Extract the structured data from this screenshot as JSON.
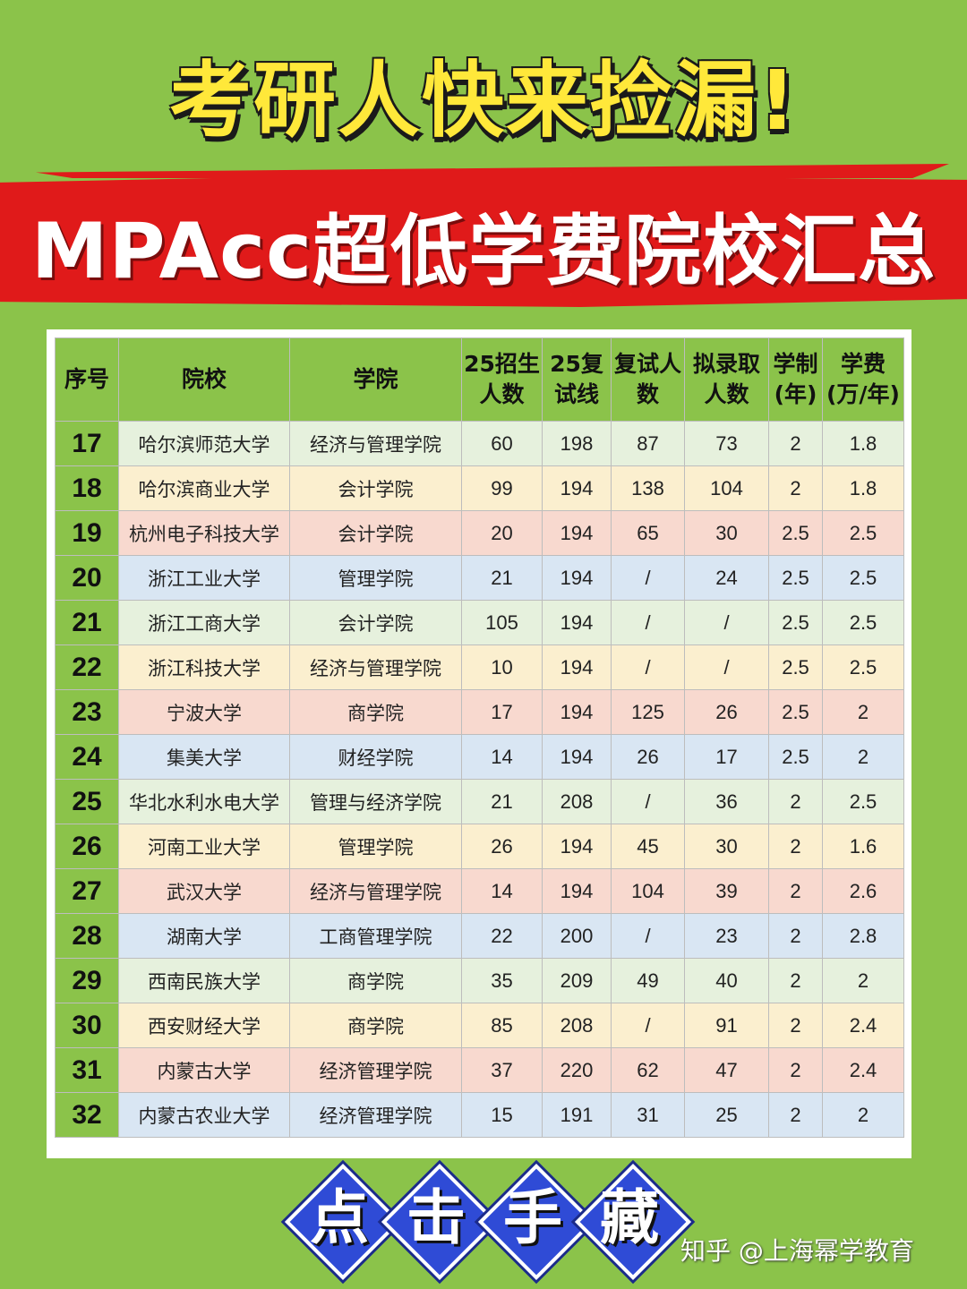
{
  "title": "考研人快来捡漏!",
  "subtitle": "MPAcc超低学费院校汇总",
  "table": {
    "headers": [
      "序号",
      "院校",
      "学院",
      "25招生人数",
      "25复试线",
      "复试人数",
      "拟录取人数",
      "学制(年)",
      "学费(万/年)"
    ],
    "rows": [
      [
        "17",
        "哈尔滨师范大学",
        "经济与管理学院",
        "60",
        "198",
        "87",
        "73",
        "2",
        "1.8"
      ],
      [
        "18",
        "哈尔滨商业大学",
        "会计学院",
        "99",
        "194",
        "138",
        "104",
        "2",
        "1.8"
      ],
      [
        "19",
        "杭州电子科技大学",
        "会计学院",
        "20",
        "194",
        "65",
        "30",
        "2.5",
        "2.5"
      ],
      [
        "20",
        "浙江工业大学",
        "管理学院",
        "21",
        "194",
        "/",
        "24",
        "2.5",
        "2.5"
      ],
      [
        "21",
        "浙江工商大学",
        "会计学院",
        "105",
        "194",
        "/",
        "/",
        "2.5",
        "2.5"
      ],
      [
        "22",
        "浙江科技大学",
        "经济与管理学院",
        "10",
        "194",
        "/",
        "/",
        "2.5",
        "2.5"
      ],
      [
        "23",
        "宁波大学",
        "商学院",
        "17",
        "194",
        "125",
        "26",
        "2.5",
        "2"
      ],
      [
        "24",
        "集美大学",
        "财经学院",
        "14",
        "194",
        "26",
        "17",
        "2.5",
        "2"
      ],
      [
        "25",
        "华北水利水电大学",
        "管理与经济学院",
        "21",
        "208",
        "/",
        "36",
        "2",
        "2.5"
      ],
      [
        "26",
        "河南工业大学",
        "管理学院",
        "26",
        "194",
        "45",
        "30",
        "2",
        "1.6"
      ],
      [
        "27",
        "武汉大学",
        "经济与管理学院",
        "14",
        "194",
        "104",
        "39",
        "2",
        "2.6"
      ],
      [
        "28",
        "湖南大学",
        "工商管理学院",
        "22",
        "200",
        "/",
        "23",
        "2",
        "2.8"
      ],
      [
        "29",
        "西南民族大学",
        "商学院",
        "35",
        "209",
        "49",
        "40",
        "2",
        "2"
      ],
      [
        "30",
        "西安财经大学",
        "商学院",
        "85",
        "208",
        "/",
        "91",
        "2",
        "2.4"
      ],
      [
        "31",
        "内蒙古大学",
        "经济管理学院",
        "37",
        "220",
        "62",
        "47",
        "2",
        "2.4"
      ],
      [
        "32",
        "内蒙古农业大学",
        "经济管理学院",
        "15",
        "191",
        "31",
        "25",
        "2",
        "2"
      ]
    ]
  },
  "collect_chars": [
    "点",
    "击",
    "手",
    "藏"
  ],
  "credit": "知乎 @上海幂学教育",
  "colors": {
    "background": "#8bc34a",
    "title": "#ffe83a",
    "banner": "#e01a1a",
    "diamond": "#2f4bd6",
    "row_colors": [
      "#e6f1dd",
      "#fbefcf",
      "#f8d9cf",
      "#d9e6f3"
    ]
  }
}
